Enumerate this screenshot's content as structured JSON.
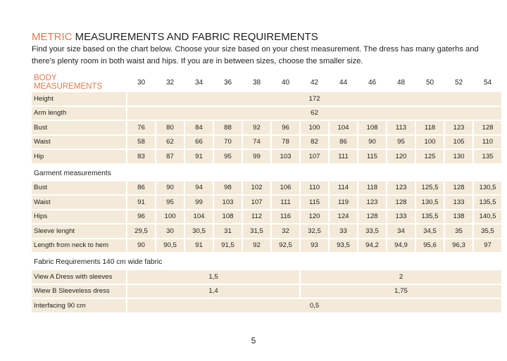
{
  "title": {
    "accent": "METRIC",
    "rest": " MEASUREMENTS AND FABRIC REQUIREMENTS"
  },
  "intro": "Find your size based on the chart below. Choose your size based on your chest measurement. The dress has many gaterhs and there’s plenty room in both waist and hips. If you are in between sizes, choose the smaller size.",
  "colors": {
    "accent": "#e27a4e",
    "cell_bg": "#f4ead9"
  },
  "body": {
    "heading": "BODY MEASUREMENTS",
    "sizes": [
      "30",
      "32",
      "34",
      "36",
      "38",
      "40",
      "42",
      "44",
      "46",
      "48",
      "50",
      "52",
      "54"
    ],
    "rows": [
      {
        "label": "Height",
        "span": "172"
      },
      {
        "label": "Arm length",
        "span": "62"
      },
      {
        "label": "Bust",
        "values": [
          "76",
          "80",
          "84",
          "88",
          "92",
          "96",
          "100",
          "104",
          "108",
          "113",
          "118",
          "123",
          "128"
        ]
      },
      {
        "label": "Waist",
        "values": [
          "58",
          "62",
          "66",
          "70",
          "74",
          "78",
          "82",
          "86",
          "90",
          "95",
          "100",
          "105",
          "110"
        ]
      },
      {
        "label": "Hip",
        "values": [
          "83",
          "87",
          "91",
          "95",
          "99",
          "103",
          "107",
          "111",
          "115",
          "120",
          "125",
          "130",
          "135"
        ]
      }
    ]
  },
  "garment": {
    "heading": "Garment measurements",
    "rows": [
      {
        "label": "Bust",
        "values": [
          "86",
          "90",
          "94",
          "98",
          "102",
          "106",
          "110",
          "114",
          "118",
          "123",
          "125,5",
          "128",
          "130,5"
        ]
      },
      {
        "label": "Waist",
        "values": [
          "91",
          "95",
          "99",
          "103",
          "107",
          "111",
          "115",
          "119",
          "123",
          "128",
          "130,5",
          "133",
          "135,5"
        ]
      },
      {
        "label": "Hips",
        "values": [
          "96",
          "100",
          "104",
          "108",
          "112",
          "116",
          "120",
          "124",
          "128",
          "133",
          "135,5",
          "138",
          "140,5"
        ]
      },
      {
        "label": "Sleeve lenght",
        "values": [
          "29,5",
          "30",
          "30,5",
          "31",
          "31,5",
          "32",
          "32,5",
          "33",
          "33,5",
          "34",
          "34,5",
          "35",
          "35,5"
        ]
      },
      {
        "label": "Length from neck to hem",
        "values": [
          "90",
          "90,5",
          "91",
          "91,5",
          "92",
          "92,5",
          "93",
          "93,5",
          "94,2",
          "94,9",
          "95,6",
          "96,3",
          "97"
        ]
      }
    ]
  },
  "fabric": {
    "heading": "Fabric Requirements 140 cm wide fabric",
    "rows": [
      {
        "label": "View A Dress with sleeves",
        "small": "1,5",
        "large": "2"
      },
      {
        "label": "Wiew B Sleeveless dress",
        "small": "1,4",
        "large": "1,75"
      },
      {
        "label": "Interfacing 90 cm",
        "span": "0,5"
      }
    ]
  },
  "page_number": "5"
}
